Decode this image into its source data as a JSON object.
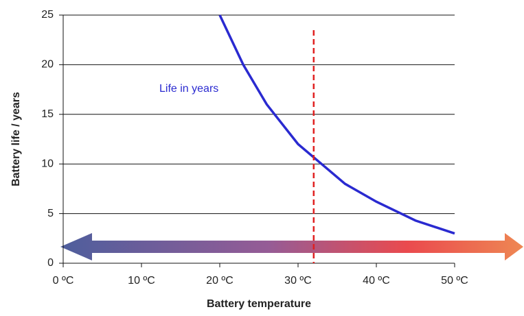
{
  "chart_data": {
    "type": "line",
    "annotation": "Life in years",
    "xlabel": "Battery temperature",
    "ylabel": "Battery life / years",
    "x": [
      20,
      23,
      26,
      30,
      33,
      36,
      40,
      45,
      50
    ],
    "series": [
      {
        "name": "Life in years",
        "color": "#2a2ad0",
        "values": [
          25,
          20,
          16,
          12,
          10,
          8,
          6.2,
          4.3,
          3
        ]
      }
    ],
    "xlim": [
      0,
      50
    ],
    "xticks": [
      {
        "value": 0,
        "label": "0 ºC"
      },
      {
        "value": 10,
        "label": "10 ºC"
      },
      {
        "value": 20,
        "label": "20 ºC"
      },
      {
        "value": 30,
        "label": "30 ºC"
      },
      {
        "value": 40,
        "label": "40 ºC"
      },
      {
        "value": 50,
        "label": "50 ºC"
      }
    ],
    "ylim": [
      0,
      25
    ],
    "yticks": [
      0,
      5,
      10,
      15,
      20,
      25
    ],
    "grid": true,
    "vline": {
      "x": 32,
      "color": "#e02020"
    }
  }
}
